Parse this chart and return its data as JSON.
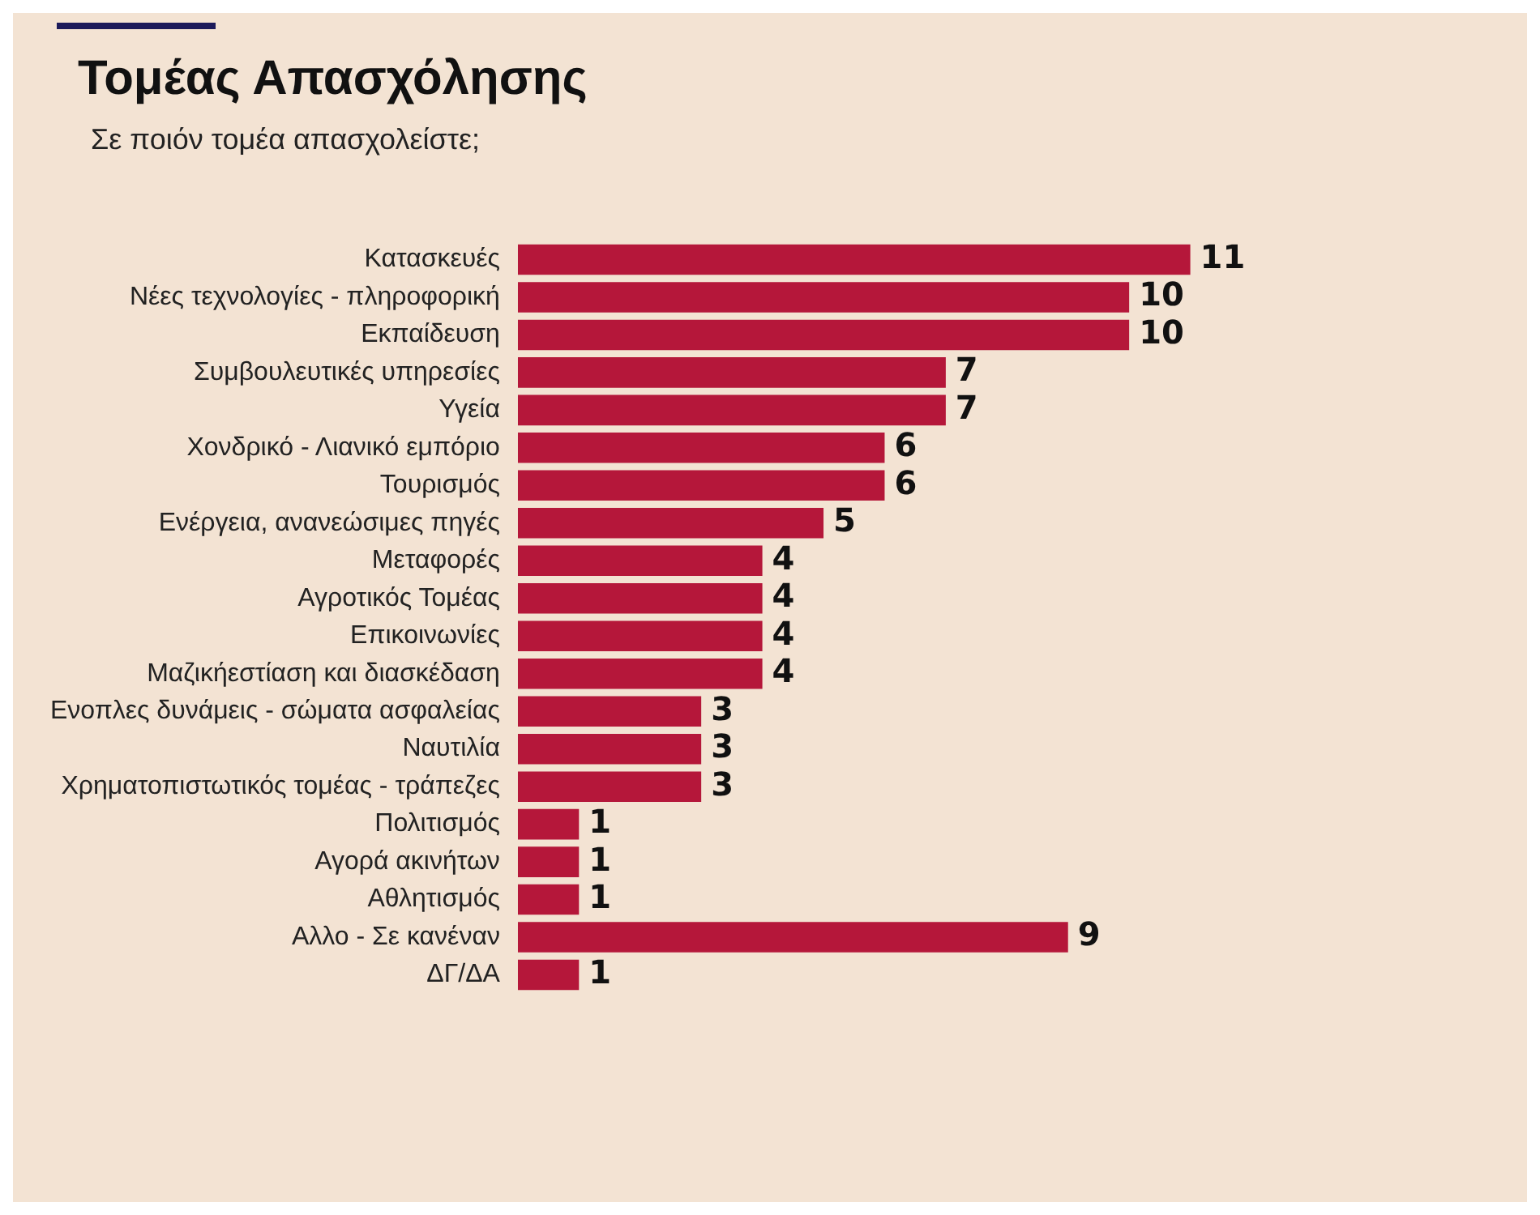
{
  "chart_data": {
    "type": "bar",
    "orientation": "horizontal",
    "title": "Τομέας Απασχόλησης",
    "subtitle": "Σε ποιόν τομέα απασχολείστε;",
    "categories": [
      "Κατασκευές",
      "Νέες τεχνολογίες - πληροφορική",
      "Εκπαίδευση",
      "Συμβουλευτικές υπηρεσίες",
      "Υγεία",
      "Χονδρικό - Λιανικό εμπόριο",
      "Τουρισμός",
      "Ενέργεια, ανανεώσιμες πηγές",
      "Μεταφορές",
      "Αγροτικός Τομέας",
      "Επικοινωνίες",
      "Μαζικήεστίαση και διασκέδαση",
      "Ενοπλες δυνάμεις - σώματα ασφαλείας",
      "Ναυτιλία",
      "Χρηματοπιστωτικός τομέας - τράπεζες",
      "Πολιτισμός",
      "Αγορά ακινήτων",
      "Αθλητισμός",
      "Αλλο - Σε κανέναν",
      "ΔΓ/ΔΑ"
    ],
    "values": [
      11,
      10,
      10,
      7,
      7,
      6,
      6,
      5,
      4,
      4,
      4,
      4,
      3,
      3,
      3,
      1,
      1,
      1,
      9,
      1
    ],
    "color": "#b5173a",
    "data_labels": true
  }
}
